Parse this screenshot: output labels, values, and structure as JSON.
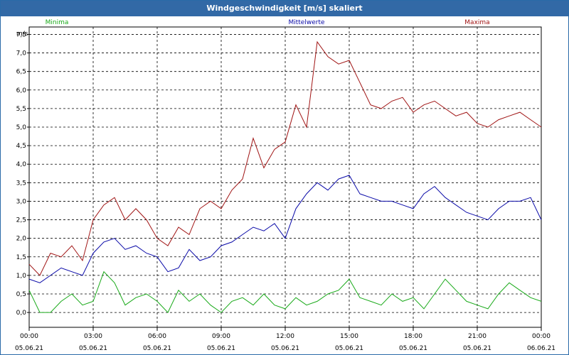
{
  "window": {
    "title": "Windgeschwindigkeit [m/s] skaliert"
  },
  "colors": {
    "title_bar": "#3269a6",
    "minima": "#1aaa1a",
    "mittelwerte": "#0a0aa8",
    "maxima": "#a01414",
    "grid": "#000000"
  },
  "chart_data": {
    "type": "line",
    "ylabel": "m/s",
    "ylim": [
      -0.4,
      7.7
    ],
    "yticks": [
      "0,0",
      "0,5",
      "1,0",
      "1,5",
      "2,0",
      "2,5",
      "3,0",
      "3,5",
      "4,0",
      "4,5",
      "5,0",
      "5,5",
      "6,0",
      "6,5",
      "7,0",
      "7,5"
    ],
    "xlim": [
      0,
      24
    ],
    "xticks": [
      {
        "time": "00:00",
        "date": "05.06.21"
      },
      {
        "time": "03:00",
        "date": "05.06.21"
      },
      {
        "time": "06:00",
        "date": "05.06.21"
      },
      {
        "time": "09:00",
        "date": "05.06.21"
      },
      {
        "time": "12:00",
        "date": "05.06.21"
      },
      {
        "time": "15:00",
        "date": "05.06.21"
      },
      {
        "time": "18:00",
        "date": "05.06.21"
      },
      {
        "time": "21:00",
        "date": "05.06.21"
      },
      {
        "time": "00:00",
        "date": "06.06.21"
      }
    ],
    "grid": true,
    "series": [
      {
        "name": "Minima",
        "color": "#1aaa1a",
        "x": [
          0,
          0.5,
          1,
          1.5,
          2,
          2.5,
          3,
          3.5,
          4,
          4.5,
          5,
          5.5,
          6,
          6.5,
          7,
          7.5,
          8,
          8.5,
          9,
          9.5,
          10,
          10.5,
          11,
          11.5,
          12,
          12.5,
          13,
          13.5,
          14,
          14.5,
          15,
          15.5,
          16,
          16.5,
          17,
          17.5,
          18,
          18.5,
          19,
          19.5,
          20,
          20.5,
          21,
          21.5,
          22,
          22.5,
          23,
          23.5,
          24
        ],
        "values": [
          0.6,
          0.0,
          0.0,
          0.3,
          0.5,
          0.2,
          0.3,
          1.1,
          0.8,
          0.2,
          0.4,
          0.5,
          0.3,
          0.0,
          0.6,
          0.3,
          0.5,
          0.2,
          0.0,
          0.3,
          0.4,
          0.2,
          0.5,
          0.2,
          0.1,
          0.4,
          0.2,
          0.3,
          0.5,
          0.6,
          0.9,
          0.4,
          0.3,
          0.2,
          0.5,
          0.3,
          0.4,
          0.1,
          0.5,
          0.9,
          0.6,
          0.3,
          0.2,
          0.1,
          0.5,
          0.8,
          0.6,
          0.4,
          0.3
        ]
      },
      {
        "name": "Mittelwerte",
        "color": "#0a0aa8",
        "x": [
          0,
          0.5,
          1,
          1.5,
          2,
          2.5,
          3,
          3.5,
          4,
          4.5,
          5,
          5.5,
          6,
          6.5,
          7,
          7.5,
          8,
          8.5,
          9,
          9.5,
          10,
          10.5,
          11,
          11.5,
          12,
          12.5,
          13,
          13.5,
          14,
          14.5,
          15,
          15.5,
          16,
          16.5,
          17,
          17.5,
          18,
          18.5,
          19,
          19.5,
          20,
          20.5,
          21,
          21.5,
          22,
          22.5,
          23,
          23.5,
          24
        ],
        "values": [
          0.9,
          0.8,
          1.0,
          1.2,
          1.1,
          1.0,
          1.6,
          1.9,
          2.0,
          1.7,
          1.8,
          1.6,
          1.5,
          1.1,
          1.2,
          1.7,
          1.4,
          1.5,
          1.8,
          1.9,
          2.1,
          2.3,
          2.2,
          2.4,
          2.0,
          2.8,
          3.2,
          3.5,
          3.3,
          3.6,
          3.7,
          3.2,
          3.1,
          3.0,
          3.0,
          2.9,
          2.8,
          3.2,
          3.4,
          3.1,
          2.9,
          2.7,
          2.6,
          2.5,
          2.8,
          3.0,
          3.0,
          3.1,
          2.5
        ]
      },
      {
        "name": "Maxima",
        "color": "#a01414",
        "x": [
          0,
          0.5,
          1,
          1.5,
          2,
          2.5,
          3,
          3.5,
          4,
          4.5,
          5,
          5.5,
          6,
          6.5,
          7,
          7.5,
          8,
          8.5,
          9,
          9.5,
          10,
          10.5,
          11,
          11.5,
          12,
          12.5,
          13,
          13.5,
          14,
          14.5,
          15,
          15.5,
          16,
          16.5,
          17,
          17.5,
          18,
          18.5,
          19,
          19.5,
          20,
          20.5,
          21,
          21.5,
          22,
          22.5,
          23,
          23.5,
          24
        ],
        "values": [
          1.3,
          1.0,
          1.6,
          1.5,
          1.8,
          1.4,
          2.5,
          2.9,
          3.1,
          2.5,
          2.8,
          2.5,
          2.0,
          1.8,
          2.3,
          2.1,
          2.8,
          3.0,
          2.8,
          3.3,
          3.6,
          4.7,
          3.9,
          4.4,
          4.6,
          5.6,
          5.0,
          7.3,
          6.9,
          6.7,
          6.8,
          6.2,
          5.6,
          5.5,
          5.7,
          5.8,
          5.4,
          5.6,
          5.7,
          5.5,
          5.3,
          5.4,
          5.1,
          5.0,
          5.2,
          5.3,
          5.4,
          5.2,
          5.0
        ]
      }
    ],
    "legend": [
      "Minima",
      "Mittelwerte",
      "Maxima"
    ],
    "legend_placement": "top"
  }
}
